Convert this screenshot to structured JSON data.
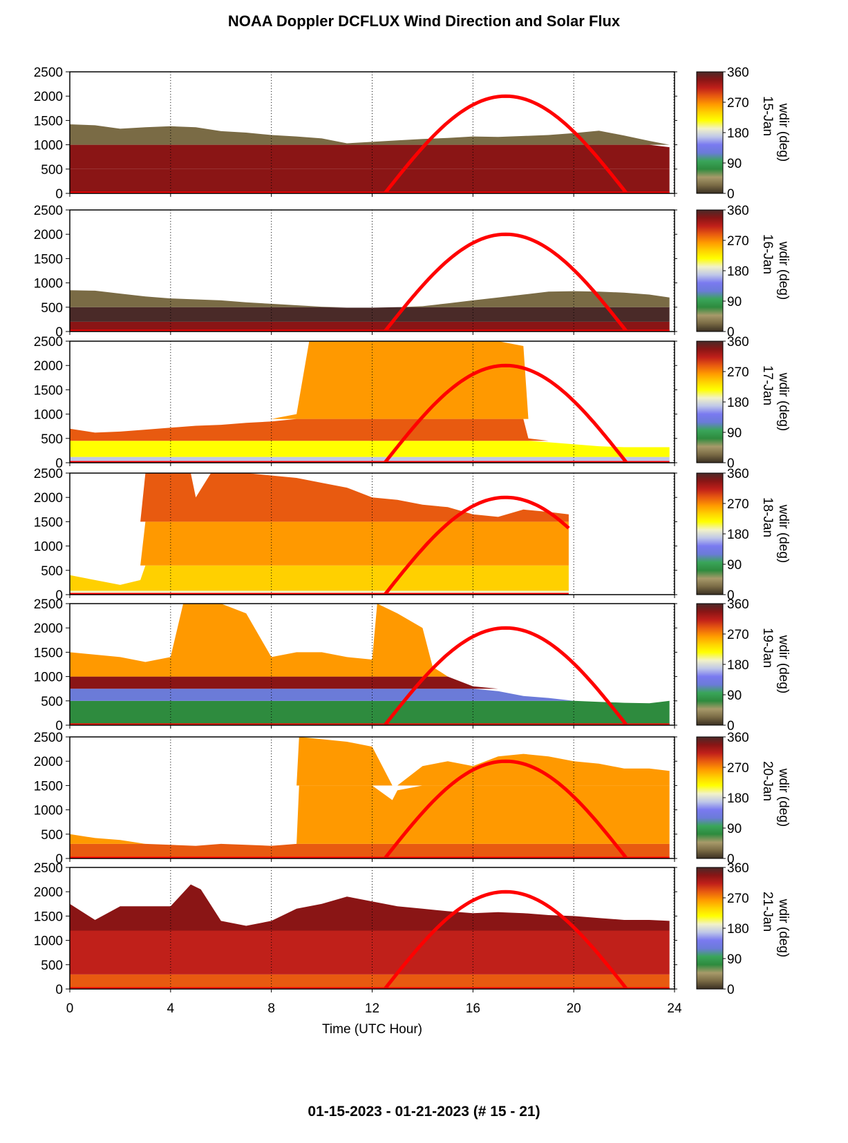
{
  "chart_data": {
    "type": "heatmap",
    "title": "NOAA Doppler DCFLUX Wind Direction and Solar Flux",
    "subtitle": "01-15-2023 - 01-21-2023   (# 15 - 21)",
    "xlabel": "Time (UTC Hour)",
    "xlim": [
      0,
      24
    ],
    "x_ticks": [
      "0",
      "4",
      "8",
      "12",
      "16",
      "20",
      "24"
    ],
    "ylim": [
      0,
      2500
    ],
    "y_ticks": [
      "0",
      "500",
      "1000",
      "1500",
      "2000",
      "2500"
    ],
    "colorbar": {
      "label": "wdir (deg)",
      "range": [
        0,
        360
      ],
      "ticks": [
        "0",
        "90",
        "180",
        "270",
        "360"
      ],
      "stops": [
        "#3a2f22",
        "#7a6b45",
        "#a89a6a",
        "#2e8b3e",
        "#3aa55a",
        "#6b7bd8",
        "#7a7af0",
        "#c0c8e8",
        "#f2f2c8",
        "#ffff00",
        "#ffd000",
        "#ff9900",
        "#e85a10",
        "#c0201a",
        "#8a1515",
        "#4a2a28"
      ]
    },
    "solar_flux_curve": {
      "color": "#ff0000",
      "start_hour": 12.5,
      "peak_hour": 17.3,
      "end_hour": 22.1,
      "peak_height": 2000
    },
    "panels": [
      {
        "date": "15-Jan",
        "top_profile": [
          [
            0,
            1420
          ],
          [
            1,
            1400
          ],
          [
            2,
            1330
          ],
          [
            3,
            1360
          ],
          [
            4,
            1380
          ],
          [
            5,
            1360
          ],
          [
            6,
            1280
          ],
          [
            7,
            1250
          ],
          [
            8,
            1200
          ],
          [
            9,
            1170
          ],
          [
            10,
            1130
          ],
          [
            11,
            1030
          ],
          [
            12,
            1060
          ],
          [
            13,
            1090
          ],
          [
            14,
            1120
          ],
          [
            15,
            1140
          ],
          [
            16,
            1170
          ],
          [
            17,
            1160
          ],
          [
            18,
            1180
          ],
          [
            19,
            1200
          ],
          [
            20,
            1240
          ],
          [
            21,
            1290
          ],
          [
            22,
            1190
          ],
          [
            23,
            1080
          ],
          [
            23.8,
            950
          ]
        ],
        "layers": [
          {
            "h0": 0,
            "h1": 500,
            "deg": 330
          },
          {
            "h0": 500,
            "h1": 1000,
            "deg": 345
          },
          {
            "h0": 1000,
            "h1": 1500,
            "deg": 15
          }
        ],
        "data_end": 23.8
      },
      {
        "date": "16-Jan",
        "top_profile": [
          [
            0,
            850
          ],
          [
            1,
            840
          ],
          [
            2,
            780
          ],
          [
            3,
            720
          ],
          [
            4,
            680
          ],
          [
            5,
            660
          ],
          [
            6,
            640
          ],
          [
            7,
            600
          ],
          [
            8,
            570
          ],
          [
            9,
            540
          ],
          [
            10,
            510
          ],
          [
            11,
            490
          ],
          [
            12,
            490
          ],
          [
            13,
            500
          ],
          [
            14,
            520
          ],
          [
            15,
            580
          ],
          [
            16,
            640
          ],
          [
            17,
            700
          ],
          [
            18,
            760
          ],
          [
            19,
            820
          ],
          [
            20,
            830
          ],
          [
            21,
            820
          ],
          [
            22,
            800
          ],
          [
            23,
            760
          ],
          [
            23.8,
            700
          ]
        ],
        "layers": [
          {
            "h0": 0,
            "h1": 200,
            "deg": 330
          },
          {
            "h0": 200,
            "h1": 500,
            "deg": 350
          },
          {
            "h0": 500,
            "h1": 900,
            "deg": 15
          }
        ],
        "data_end": 23.8
      },
      {
        "date": "17-Jan",
        "top_profile": [
          [
            0,
            700
          ],
          [
            1,
            620
          ],
          [
            2,
            640
          ],
          [
            3,
            680
          ],
          [
            4,
            720
          ],
          [
            5,
            760
          ],
          [
            6,
            780
          ],
          [
            7,
            820
          ],
          [
            8,
            850
          ],
          [
            9,
            1000
          ],
          [
            9.5,
            2500
          ],
          [
            12,
            2500
          ],
          [
            14,
            2500
          ],
          [
            16,
            2500
          ],
          [
            17,
            2500
          ],
          [
            18,
            2400
          ],
          [
            18.2,
            500
          ],
          [
            19,
            420
          ],
          [
            20,
            380
          ],
          [
            21,
            340
          ],
          [
            22,
            320
          ],
          [
            23,
            320
          ],
          [
            23.8,
            320
          ]
        ],
        "layers": [
          {
            "h0": 0,
            "h1": 120,
            "deg": 175
          },
          {
            "h0": 120,
            "h1": 450,
            "deg": 220
          },
          {
            "h0": 450,
            "h1": 900,
            "deg": 280
          },
          {
            "h0": 900,
            "h1": 2500,
            "deg": 255
          }
        ],
        "data_end": 23.8
      },
      {
        "date": "18-Jan",
        "top_profile": [
          [
            0,
            400
          ],
          [
            1,
            300
          ],
          [
            2,
            200
          ],
          [
            2.8,
            300
          ],
          [
            3,
            2500
          ],
          [
            4,
            2500
          ],
          [
            4.8,
            2500
          ],
          [
            5,
            2000
          ],
          [
            5.6,
            2500
          ],
          [
            7,
            2500
          ],
          [
            8,
            2450
          ],
          [
            9,
            2400
          ],
          [
            10,
            2300
          ],
          [
            11,
            2200
          ],
          [
            12,
            2000
          ],
          [
            13,
            1950
          ],
          [
            14,
            1850
          ],
          [
            15,
            1800
          ],
          [
            16,
            1650
          ],
          [
            17,
            1600
          ],
          [
            18,
            1750
          ],
          [
            19,
            1700
          ],
          [
            19.8,
            1650
          ]
        ],
        "layers": [
          {
            "h0": 0,
            "h1": 80,
            "deg": 200
          },
          {
            "h0": 80,
            "h1": 600,
            "deg": 245
          },
          {
            "h0": 600,
            "h1": 1500,
            "deg": 265
          },
          {
            "h0": 1500,
            "h1": 2500,
            "deg": 285
          }
        ],
        "data_end": 19.8
      },
      {
        "date": "19-Jan",
        "top_profile": [
          [
            0,
            1500
          ],
          [
            1,
            1450
          ],
          [
            2,
            1400
          ],
          [
            3,
            1300
          ],
          [
            4,
            1400
          ],
          [
            4.5,
            2500
          ],
          [
            6,
            2500
          ],
          [
            7,
            2300
          ],
          [
            8,
            1400
          ],
          [
            9,
            1500
          ],
          [
            10,
            1500
          ],
          [
            11,
            1400
          ],
          [
            12,
            1350
          ],
          [
            12.2,
            2500
          ],
          [
            13,
            2300
          ],
          [
            14,
            2000
          ],
          [
            14.4,
            1200
          ],
          [
            15,
            1000
          ],
          [
            16,
            800
          ],
          [
            17,
            700
          ],
          [
            18,
            600
          ],
          [
            19,
            560
          ],
          [
            20,
            500
          ],
          [
            21,
            480
          ],
          [
            22,
            460
          ],
          [
            23,
            450
          ],
          [
            23.8,
            500
          ]
        ],
        "layers": [
          {
            "h0": 0,
            "h1": 500,
            "deg": 60
          },
          {
            "h0": 500,
            "h1": 750,
            "deg": 120
          },
          {
            "h0": 750,
            "h1": 1000,
            "deg": 330
          },
          {
            "h0": 1000,
            "h1": 2500,
            "deg": 255
          }
        ],
        "data_end": 23.8
      },
      {
        "date": "20-Jan",
        "top_profile": [
          [
            0,
            500
          ],
          [
            1,
            420
          ],
          [
            2,
            380
          ],
          [
            3,
            300
          ],
          [
            4,
            280
          ],
          [
            5,
            260
          ],
          [
            6,
            300
          ],
          [
            7,
            280
          ],
          [
            8,
            260
          ],
          [
            9,
            300
          ],
          [
            9.1,
            2500
          ],
          [
            11,
            2400
          ],
          [
            12,
            2300
          ],
          [
            12.8,
            1200
          ],
          [
            13,
            1400
          ],
          [
            14,
            1900
          ],
          [
            15,
            2000
          ],
          [
            16,
            1900
          ],
          [
            17,
            2100
          ],
          [
            18,
            2150
          ],
          [
            19,
            2100
          ],
          [
            20,
            2000
          ],
          [
            21,
            1950
          ],
          [
            22,
            1850
          ],
          [
            23,
            1850
          ],
          [
            23.8,
            1800
          ]
        ],
        "layers": [
          {
            "h0": 0,
            "h1": 300,
            "deg": 285
          },
          {
            "h0": 300,
            "h1": 1500,
            "deg": 270
          },
          {
            "h0": 1500,
            "h1": 2500,
            "deg": 255
          }
        ],
        "data_end": 23.8
      },
      {
        "date": "21-Jan",
        "top_profile": [
          [
            0,
            1750
          ],
          [
            1,
            1420
          ],
          [
            2,
            1700
          ],
          [
            3,
            1700
          ],
          [
            4,
            1700
          ],
          [
            4.8,
            2150
          ],
          [
            5.2,
            2050
          ],
          [
            6,
            1400
          ],
          [
            7,
            1300
          ],
          [
            8,
            1400
          ],
          [
            9,
            1650
          ],
          [
            10,
            1750
          ],
          [
            11,
            1900
          ],
          [
            12,
            1800
          ],
          [
            13,
            1700
          ],
          [
            14,
            1650
          ],
          [
            15,
            1600
          ],
          [
            16,
            1560
          ],
          [
            17,
            1580
          ],
          [
            18,
            1560
          ],
          [
            19,
            1520
          ],
          [
            20,
            1500
          ],
          [
            21,
            1460
          ],
          [
            22,
            1420
          ],
          [
            23,
            1420
          ],
          [
            23.8,
            1400
          ]
        ],
        "layers": [
          {
            "h0": 0,
            "h1": 300,
            "deg": 285
          },
          {
            "h0": 300,
            "h1": 1200,
            "deg": 300
          },
          {
            "h0": 1200,
            "h1": 2500,
            "deg": 330
          }
        ],
        "data_end": 23.8
      }
    ]
  }
}
